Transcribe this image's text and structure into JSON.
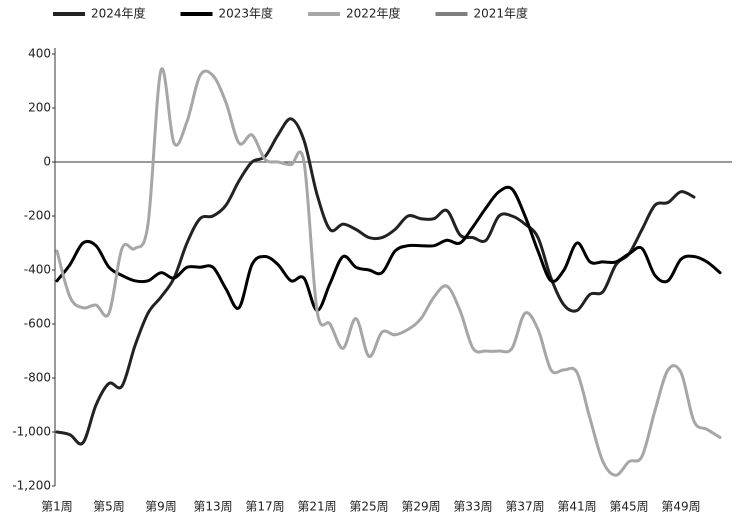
{
  "chart_data": {
    "type": "line",
    "categories": [
      "第1周",
      null,
      null,
      null,
      "第5周",
      null,
      null,
      null,
      "第9周",
      null,
      null,
      null,
      "第13周",
      null,
      null,
      null,
      "第17周",
      null,
      null,
      null,
      "第21周",
      null,
      null,
      null,
      "第25周",
      null,
      null,
      null,
      "第29周",
      null,
      null,
      null,
      "第33周",
      null,
      null,
      null,
      "第37周",
      null,
      null,
      null,
      "第41周",
      null,
      null,
      null,
      "第45周",
      null,
      null,
      null,
      "第49周",
      null,
      null,
      null
    ],
    "series": [
      {
        "name": "2024年度",
        "color": "#222222",
        "values": [
          -1000,
          -1010,
          -1040,
          -900,
          -820,
          -830,
          -680,
          -560,
          -500,
          -430,
          -300,
          -210,
          -200,
          -160,
          -70,
          0,
          20,
          100,
          160,
          80,
          -120,
          -250,
          -230,
          -250,
          -280,
          -280,
          -250,
          -200,
          -210,
          -210,
          -180,
          -270,
          -280,
          -290,
          -200,
          -200,
          -230,
          -280,
          -430,
          -530,
          -550,
          -490,
          -480,
          -380,
          -340,
          -250,
          -160,
          -150,
          -110,
          -130,
          null,
          null
        ]
      },
      {
        "name": "2023年度",
        "color": "#000000",
        "values": [
          -440,
          -380,
          -300,
          -310,
          -390,
          -420,
          -440,
          -440,
          -410,
          -430,
          -390,
          -390,
          -390,
          -470,
          -540,
          -380,
          -350,
          -380,
          -440,
          -430,
          -550,
          -450,
          -350,
          -390,
          -400,
          -410,
          -330,
          -310,
          -310,
          -310,
          -290,
          -300,
          -240,
          -170,
          -110,
          -100,
          -200,
          -330,
          -440,
          -400,
          -300,
          -370,
          -370,
          -370,
          -340,
          -320,
          -420,
          -440,
          -360,
          -350,
          -370,
          -410
        ]
      },
      {
        "name": "2022年度",
        "color": "#a6a6a6",
        "values": [
          -330,
          -500,
          -540,
          -530,
          -560,
          -320,
          -320,
          -230,
          340,
          70,
          150,
          320,
          320,
          220,
          70,
          100,
          10,
          0,
          -10,
          0,
          -550,
          -600,
          -690,
          -580,
          -720,
          -630,
          -640,
          -620,
          -580,
          -500,
          -460,
          -550,
          -690,
          -700,
          -700,
          -690,
          -560,
          -620,
          -770,
          -770,
          -780,
          -950,
          -1110,
          -1160,
          -1110,
          -1090,
          -920,
          -770,
          -780,
          -960,
          -990,
          -1020
        ]
      },
      {
        "name": "2021年度",
        "color": "#7f7f7f",
        "values": [
          null,
          null,
          null,
          null,
          null,
          null,
          null,
          null,
          null,
          null,
          null,
          null,
          null,
          null,
          null,
          null,
          null,
          null,
          null,
          null,
          null,
          null,
          null,
          null,
          null,
          null,
          null,
          null,
          null,
          null,
          null,
          null,
          null,
          null,
          null,
          null,
          null,
          null,
          null,
          null,
          null,
          null,
          null,
          null,
          null,
          null,
          null,
          null,
          null,
          null,
          null,
          null
        ]
      }
    ],
    "ylim": [
      -1200,
      400
    ],
    "yticks": [
      400,
      200,
      0,
      -200,
      -400,
      -600,
      -800,
      {
        "value": -1000,
        "label": "-1,000"
      },
      {
        "value": -1200,
        "label": "-1,200"
      }
    ],
    "grid": false,
    "legend": "top"
  }
}
